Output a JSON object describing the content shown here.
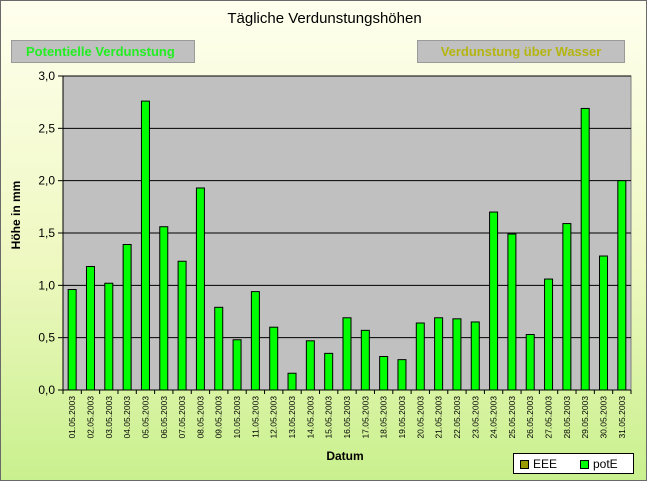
{
  "buttons": {
    "potential": "Potentielle Verdunstung",
    "water": "Verdunstung über Wasser"
  },
  "colors": {
    "bar": "#00ff00",
    "eee": "#999900",
    "plot_bg": "#c0c0c0"
  },
  "chart_data": {
    "type": "bar",
    "title": "Tägliche Verdunstungshöhen",
    "xlabel": "Datum",
    "ylabel": "Höhe in mm",
    "ylim": [
      0,
      3
    ],
    "yticks": [
      "0,0",
      "0,5",
      "1,0",
      "1,5",
      "2,0",
      "2,5",
      "3,0"
    ],
    "grid": true,
    "legend_position": "bottom-right",
    "legend": [
      "EEE",
      "potE"
    ],
    "categories": [
      "01.05.2003",
      "02.05.2003",
      "03.05.2003",
      "04.05.2003",
      "05.05.2003",
      "06.05.2003",
      "07.05.2003",
      "08.05.2003",
      "09.05.2003",
      "10.05.2003",
      "11.05.2003",
      "12.05.2003",
      "13.05.2003",
      "14.05.2003",
      "15.05.2003",
      "16.05.2003",
      "17.05.2003",
      "18.05.2003",
      "19.05.2003",
      "20.05.2003",
      "21.05.2003",
      "22.05.2003",
      "23.05.2003",
      "24.05.2003",
      "25.05.2003",
      "26.05.2003",
      "27.05.2003",
      "28.05.2003",
      "29.05.2003",
      "30.05.2003",
      "31.05.2003"
    ],
    "series": [
      {
        "name": "potE",
        "values": [
          0.96,
          1.18,
          1.02,
          1.39,
          2.76,
          1.56,
          1.23,
          1.93,
          0.79,
          0.48,
          0.94,
          0.6,
          0.16,
          0.47,
          0.35,
          0.69,
          0.57,
          0.32,
          0.29,
          0.64,
          0.69,
          0.68,
          0.65,
          1.7,
          1.49,
          0.53,
          1.06,
          1.59,
          2.69,
          1.28,
          2.0
        ]
      }
    ]
  }
}
